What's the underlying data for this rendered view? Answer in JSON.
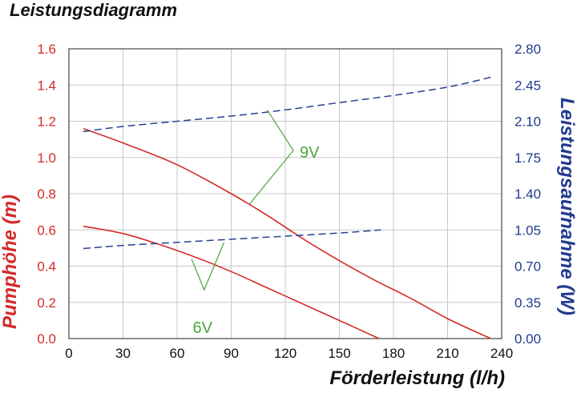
{
  "chart_data": {
    "type": "line",
    "title": "Leistungsdiagramm",
    "xlabel": "Förderleistung (l/h)",
    "ylabel_left": "Pumphöhe (m)",
    "ylabel_right": "Leistungsaufnahme (W)",
    "xlim": [
      0,
      240
    ],
    "ylim_left": [
      0,
      1.6
    ],
    "ylim_right": [
      0,
      2.8
    ],
    "x_ticks": [
      "0",
      "30",
      "60",
      "90",
      "120",
      "150",
      "180",
      "210",
      "240"
    ],
    "y_left_ticks": [
      "0.0",
      "0.2",
      "0.4",
      "0.6",
      "0.8",
      "1.0",
      "1.2",
      "1.4",
      "1.6"
    ],
    "y_right_ticks": [
      "0.00",
      "0.35",
      "0.70",
      "1.05",
      "1.40",
      "1.75",
      "2.10",
      "2.45",
      "2.80"
    ],
    "grid": true,
    "colors": {
      "head": "#d42a2a",
      "power": "#2a3f8f",
      "annotation": "#4aa43a",
      "axis_left": "#d42a2a",
      "axis_right": "#233a8f"
    },
    "series": [
      {
        "axis": "left",
        "style": "solid",
        "color": "#d42a2a",
        "x": [
          8,
          30,
          60,
          90,
          110,
          130,
          150,
          170,
          190,
          210,
          234
        ],
        "y": [
          1.16,
          1.08,
          0.96,
          0.8,
          0.68,
          0.55,
          0.43,
          0.32,
          0.22,
          0.11,
          0.0
        ]
      },
      {
        "axis": "left",
        "style": "solid",
        "color": "#d42a2a",
        "x": [
          8,
          30,
          50,
          70,
          90,
          110,
          130,
          150,
          172
        ],
        "y": [
          0.62,
          0.58,
          0.52,
          0.45,
          0.37,
          0.28,
          0.19,
          0.1,
          0.0
        ]
      },
      {
        "axis": "right",
        "style": "dashed",
        "color": "#2a3f8f",
        "x": [
          8,
          30,
          60,
          90,
          120,
          150,
          180,
          210,
          235
        ],
        "y": [
          2.0,
          2.05,
          2.1,
          2.15,
          2.21,
          2.28,
          2.35,
          2.43,
          2.53
        ]
      },
      {
        "axis": "right",
        "style": "dashed",
        "color": "#2a3f8f",
        "x": [
          8,
          30,
          60,
          90,
          120,
          150,
          173
        ],
        "y": [
          0.87,
          0.9,
          0.93,
          0.96,
          0.99,
          1.02,
          1.05
        ]
      }
    ],
    "annotations": [
      {
        "text": "9V",
        "label_at": [
          128,
          1.03
        ],
        "targets": [
          [
            110,
            2.21
          ],
          [
            100,
            0.74
          ]
        ]
      },
      {
        "text": "6V",
        "label_at": [
          75,
          0.19
        ],
        "targets": [
          [
            68,
            0.44
          ],
          [
            86,
            0.54
          ]
        ]
      }
    ]
  }
}
